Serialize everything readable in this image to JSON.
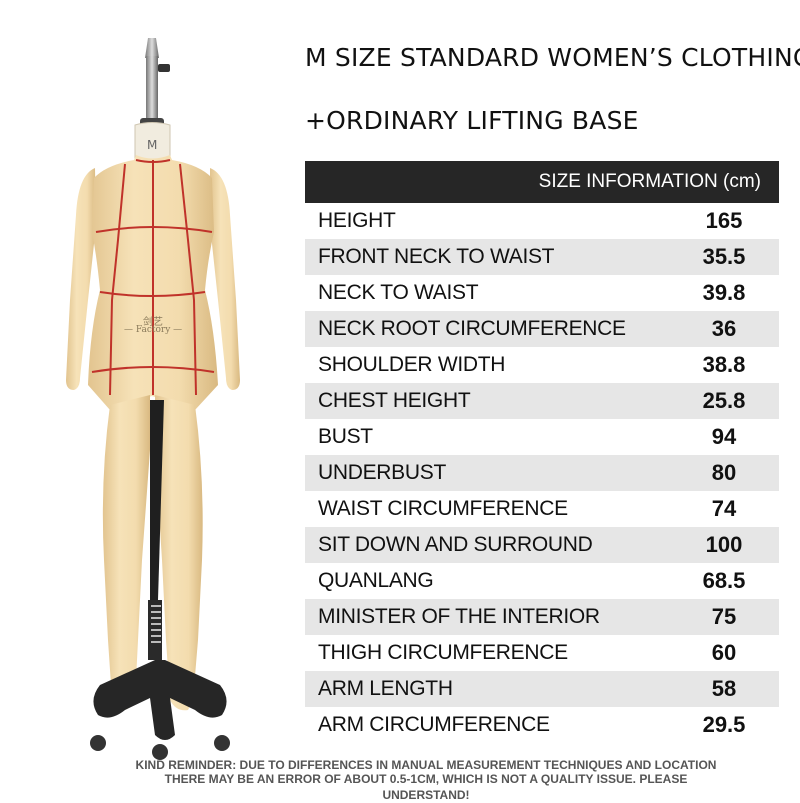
{
  "header": {
    "title_line1": "M SIZE STANDARD WOMEN’S CLOTHING",
    "title_line2": "+ORDINARY LIFTING BASE"
  },
  "figure": {
    "size_mark": "M",
    "brand_chinese": "剑艺",
    "brand_english": "— Factory —"
  },
  "table": {
    "header": "SIZE INFORMATION (cm)",
    "rows": [
      {
        "label": "HEIGHT",
        "value": "165"
      },
      {
        "label": "FRONT NECK TO WAIST",
        "value": "35.5"
      },
      {
        "label": "NECK TO WAIST",
        "value": "39.8"
      },
      {
        "label": "NECK ROOT CIRCUMFERENCE",
        "value": "36"
      },
      {
        "label": "SHOULDER WIDTH",
        "value": "38.8"
      },
      {
        "label": "CHEST HEIGHT",
        "value": "25.8"
      },
      {
        "label": "BUST",
        "value": "94"
      },
      {
        "label": "UNDERBUST",
        "value": "80"
      },
      {
        "label": "WAIST CIRCUMFERENCE",
        "value": "74"
      },
      {
        "label": "SIT DOWN AND SURROUND",
        "value": "100"
      },
      {
        "label": "QUANLANG",
        "value": "68.5"
      },
      {
        "label": "MINISTER OF THE INTERIOR",
        "value": "75"
      },
      {
        "label": "THIGH CIRCUMFERENCE",
        "value": "60"
      },
      {
        "label": "ARM LENGTH",
        "value": "58"
      },
      {
        "label": "ARM CIRCUMFERENCE",
        "value": "29.5"
      }
    ]
  },
  "footer": {
    "note_line1": "KIND REMINDER: DUE TO DIFFERENCES IN MANUAL MEASUREMENT TECHNIQUES AND LOCATION",
    "note_line2": "THERE MAY BE AN ERROR OF ABOUT 0.5-1CM, WHICH IS NOT A QUALITY ISSUE. PLEASE UNDERSTAND!"
  },
  "colors": {
    "header_bg": "#262626",
    "row_alt_bg": "#e6e6e6",
    "form_skin": "#f2dcae",
    "seam_line": "#c0322a"
  }
}
